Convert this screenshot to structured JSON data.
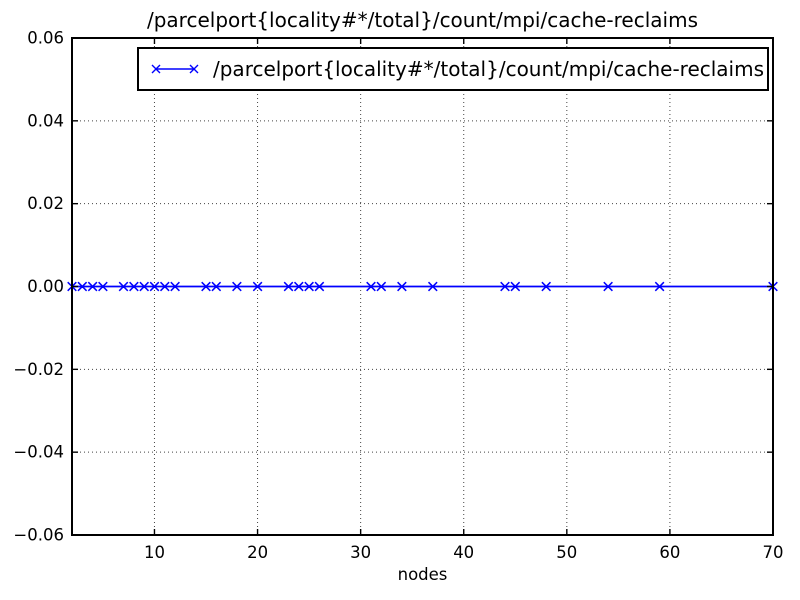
{
  "chart_data": {
    "type": "line",
    "title": "/parcelport{locality#*/total}/count/mpi/cache-reclaims",
    "xlabel": "nodes",
    "ylabel": "",
    "xlim": [
      2,
      70
    ],
    "ylim": [
      -0.06,
      0.06
    ],
    "xticks": [
      10,
      20,
      30,
      40,
      50,
      60,
      70
    ],
    "xtick_labels": [
      "10",
      "20",
      "30",
      "40",
      "50",
      "60",
      "70"
    ],
    "yticks": [
      0.06,
      0.04,
      0.02,
      0.0,
      -0.02,
      -0.04,
      -0.06
    ],
    "ytick_labels": [
      "0.06",
      "0.04",
      "0.02",
      "0.00",
      "−0.02",
      "−0.04",
      "−0.06"
    ],
    "grid": true,
    "grid_style": "dotted",
    "legend_position": "upper right",
    "frame_color": "#000000",
    "grid_color": "#444444",
    "series": [
      {
        "name": "/parcelport{locality#*/total}/count/mpi/cache-reclaims",
        "color": "#0000ff",
        "marker": "x",
        "x": [
          2,
          3,
          4,
          5,
          7,
          8,
          9,
          10,
          11,
          12,
          15,
          16,
          18,
          20,
          23,
          24,
          25,
          26,
          31,
          32,
          34,
          37,
          44,
          45,
          48,
          54,
          59,
          70
        ],
        "y": [
          0,
          0,
          0,
          0,
          0,
          0,
          0,
          0,
          0,
          0,
          0,
          0,
          0,
          0,
          0,
          0,
          0,
          0,
          0,
          0,
          0,
          0,
          0,
          0,
          0,
          0,
          0,
          0
        ]
      }
    ]
  }
}
